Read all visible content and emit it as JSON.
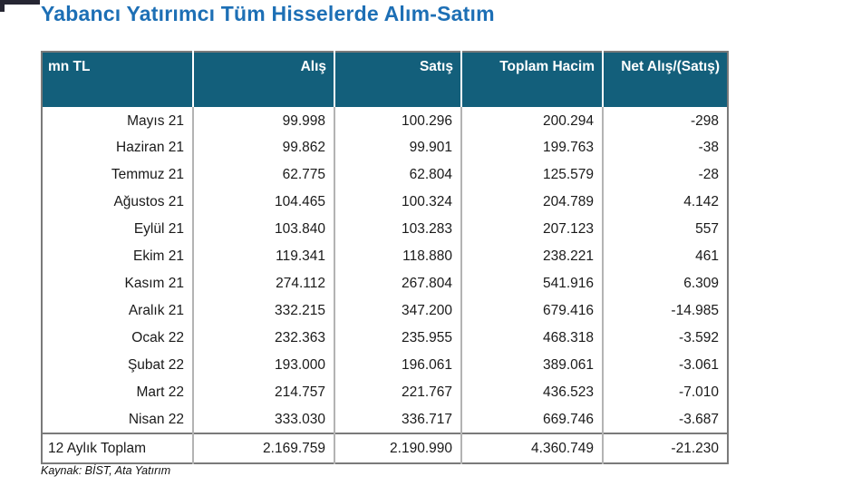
{
  "page": {
    "title": "Yabancı Yatırımcı Tüm Hisselerde Alım-Satım",
    "source_note": "Kaynak: BİST, Ata Yatırım"
  },
  "colors": {
    "title_blue": "#1d6fb5",
    "header_teal": "#135f7b",
    "header_text": "#ffffff",
    "outer_border": "#7a7a7a",
    "column_separator": "#b3b3b3",
    "body_text": "#1a1a1a"
  },
  "chart_data": {
    "type": "table",
    "title": "Yabancı Yatırımcı Tüm Hisselerde Alım-Satım",
    "unit": "mn TL",
    "columns": [
      "mn TL",
      "Alış",
      "Satış",
      "Toplam Hacim",
      "Net Alış/(Satış)"
    ],
    "rows": [
      [
        "Mayıs 21",
        "99.998",
        "100.296",
        "200.294",
        "-298"
      ],
      [
        "Haziran 21",
        "99.862",
        "99.901",
        "199.763",
        "-38"
      ],
      [
        "Temmuz 21",
        "62.775",
        "62.804",
        "125.579",
        "-28"
      ],
      [
        "Ağustos 21",
        "104.465",
        "100.324",
        "204.789",
        "4.142"
      ],
      [
        "Eylül 21",
        "103.840",
        "103.283",
        "207.123",
        "557"
      ],
      [
        "Ekim 21",
        "119.341",
        "118.880",
        "238.221",
        "461"
      ],
      [
        "Kasım 21",
        "274.112",
        "267.804",
        "541.916",
        "6.309"
      ],
      [
        "Aralık 21",
        "332.215",
        "347.200",
        "679.416",
        "-14.985"
      ],
      [
        "Ocak 22",
        "232.363",
        "235.955",
        "468.318",
        "-3.592"
      ],
      [
        "Şubat 22",
        "193.000",
        "196.061",
        "389.061",
        "-3.061"
      ],
      [
        "Mart 22",
        "214.757",
        "221.767",
        "436.523",
        "-7.010"
      ],
      [
        "Nisan 22",
        "333.030",
        "336.717",
        "669.746",
        "-3.687"
      ]
    ],
    "total_row": [
      "12 Aylık Toplam",
      "2.169.759",
      "2.190.990",
      "4.360.749",
      "-21.230"
    ],
    "source": "Kaynak: BİST, Ata Yatırım"
  }
}
